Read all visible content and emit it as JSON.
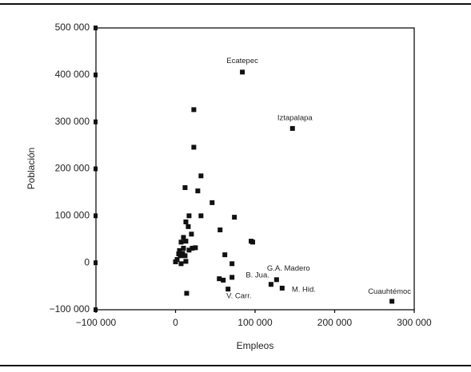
{
  "chart_data": {
    "type": "scatter",
    "x_label": "Empleos",
    "y_label": "Población",
    "xlim": [
      -100000,
      300000
    ],
    "xticks": [
      {
        "value": -100000,
        "label": "−100 000"
      },
      0,
      {
        "value": 100000,
        "label": "100 000"
      },
      {
        "value": 200000,
        "label": "200 000"
      },
      {
        "value": 300000,
        "label": "300 000"
      }
    ],
    "ylim": [
      -100000,
      500000
    ],
    "yticks": [
      {
        "value": -100000,
        "label": "−100 000"
      },
      0,
      {
        "value": 100000,
        "label": "100 000"
      },
      {
        "value": 200000,
        "label": "200 000"
      },
      {
        "value": 300000,
        "label": "300 000"
      },
      {
        "value": 400000,
        "label": "400 000"
      },
      {
        "value": 500000,
        "label": "500 000"
      }
    ],
    "grid": false,
    "color": "#111111",
    "x": [
      84000,
      147000,
      272000,
      127000,
      120000,
      134000,
      66000,
      23000,
      23000,
      32000,
      12000,
      28000,
      46000,
      74000,
      17000,
      32000,
      13000,
      16000,
      56000,
      20000,
      10000,
      95000,
      97000,
      13000,
      7000,
      25000,
      17000,
      21000,
      10000,
      5000,
      62000,
      6000,
      9000,
      12000,
      71000,
      2000,
      7000,
      0,
      13000,
      55000,
      60000,
      71000,
      14000,
      4000
    ],
    "values": [
      406000,
      286000,
      -82000,
      -36000,
      -46000,
      -54000,
      -56000,
      326000,
      246000,
      185000,
      160000,
      153000,
      128000,
      97000,
      100000,
      100000,
      87000,
      77000,
      70000,
      61000,
      54000,
      46000,
      44000,
      46000,
      44000,
      32000,
      27000,
      31000,
      31000,
      26000,
      17000,
      15000,
      20000,
      15000,
      -2000,
      7000,
      -2000,
      2000,
      3000,
      -34000,
      -37000,
      -31000,
      -65000,
      19000
    ],
    "point_labels": [
      "Ecatepec",
      "Iztapalapa",
      "Cuauhtémoc",
      "G.A. Madero",
      "B. Jua.",
      "M. Hid.",
      "V. Carr.",
      null,
      null,
      null,
      null,
      null,
      null,
      null,
      null,
      null,
      null,
      null,
      null,
      null,
      null,
      null,
      null,
      null,
      null,
      null,
      null,
      null,
      null,
      null,
      null,
      null,
      null,
      null,
      null,
      null,
      null,
      null,
      null,
      null,
      null,
      null,
      null,
      null
    ]
  }
}
